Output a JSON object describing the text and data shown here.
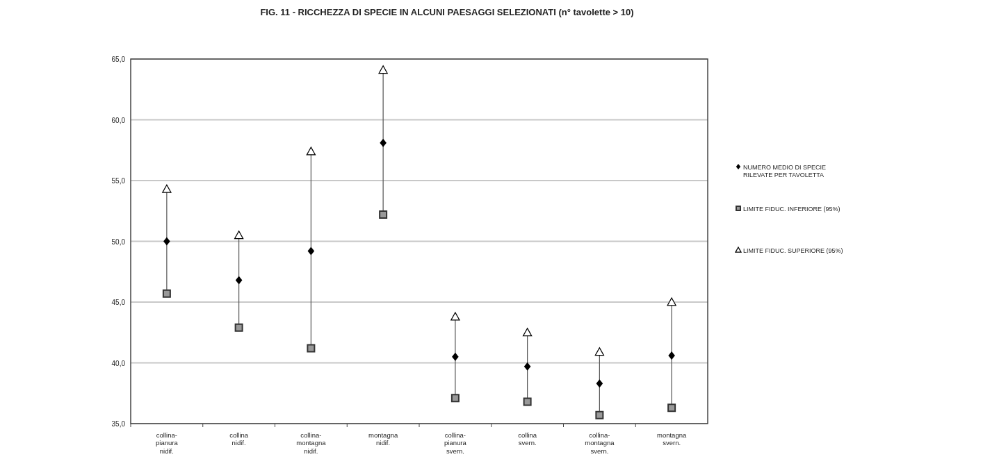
{
  "chart_data": {
    "type": "scatter",
    "title": "FIG. 11 - RICCHEZZA DI SPECIE IN ALCUNI PAESAGGI SELEZIONATI (n° tavolette > 10)",
    "categories": [
      "collina-\npianura\nnidif.",
      "collina\nnidif.",
      "collina-\nmontagna\nnidif.",
      "montagna\nnidif.",
      "collina-\npianura\nsvern.",
      "collina\nsvern.",
      "collina-\nmontagna\nsvern.",
      "montagna\nsvern."
    ],
    "series": [
      {
        "type": "line",
        "color": "#555555",
        "marker": "none",
        "x": [
          "collina-\npianura\nnidif.",
          "collina-\npianura\nnidif.",
          "collina-\npianura\nnidif.",
          "collina\nnidif.",
          "collina\nnidif.",
          "collina\nnidif.",
          "collina-\nmontagna\nnidif.",
          "collina-\nmontagna\nnidif.",
          "collina-\nmontagna\nnidif.",
          "montagna\nnidif.",
          "montagna\nnidif.",
          "montagna\nnidif.",
          "collina-\npianura\nsvern.",
          "collina-\npianura\nsvern.",
          "collina-\npianura\nsvern.",
          "collina\nsvern.",
          "collina\nsvern.",
          "collina\nsvern.",
          "collina-\nmontagna\nsvern.",
          "collina-\nmontagna\nsvern.",
          "collina-\nmontagna\nsvern.",
          "montagna\nsvern.",
          "montagna\nsvern."
        ],
        "values": [
          45.7,
          54.3,
          null,
          42.9,
          50.5,
          null,
          41.2,
          57.4,
          null,
          52.2,
          64.1,
          null,
          37.1,
          43.8,
          null,
          36.8,
          42.5,
          null,
          35.7,
          40.9,
          null,
          36.3,
          45.0
        ]
      },
      {
        "name": "NUMERO MEDIO DI SPECIE\nRILEVATE PER TAVOLETTA",
        "color": "#000000",
        "marker": "diamond",
        "values": [
          50.0,
          46.8,
          49.2,
          58.1,
          40.5,
          39.7,
          38.3,
          40.6
        ]
      },
      {
        "name": "LIMITE FIDUC. INFERIORE (95%)",
        "color": "#333333",
        "marker": "square",
        "values": [
          45.7,
          42.9,
          41.2,
          52.2,
          37.1,
          36.8,
          35.7,
          36.3
        ]
      },
      {
        "name": "LIMITE FIDUC. SUPERIORE (95%)",
        "color": "#000000",
        "marker": "triangle",
        "values": [
          54.3,
          50.5,
          57.4,
          64.1,
          43.8,
          42.5,
          40.9,
          45.0
        ]
      }
    ],
    "ylim": [
      35,
      65
    ],
    "yticks": [
      {
        "value": 35,
        "label": "35,0"
      },
      {
        "value": 40,
        "label": "40,0"
      },
      {
        "value": 45,
        "label": "45,0"
      },
      {
        "value": 50,
        "label": "50,0"
      },
      {
        "value": 55,
        "label": "55,0"
      },
      {
        "value": 60,
        "label": "60,0"
      },
      {
        "value": 65,
        "label": "65,0"
      }
    ],
    "grid": "y",
    "legend": "right"
  }
}
